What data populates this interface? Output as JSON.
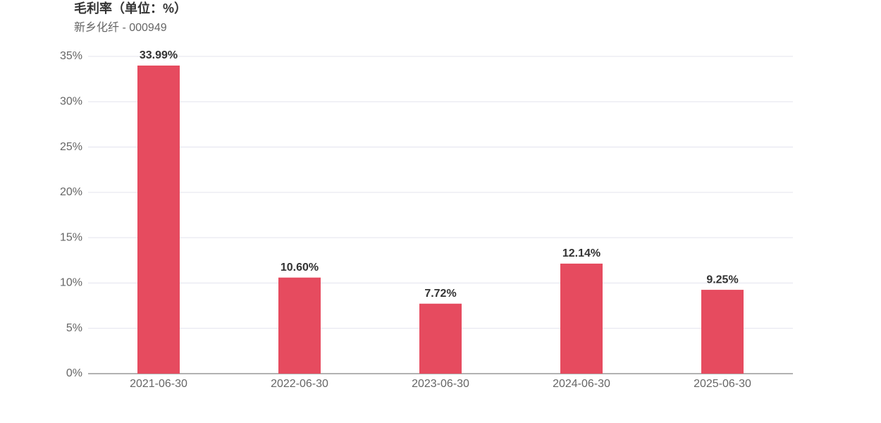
{
  "chart_data": {
    "type": "bar",
    "title": "毛利率（单位：%）",
    "subtitle": "新乡化纤 - 000949",
    "categories": [
      "2021-06-30",
      "2022-06-30",
      "2023-06-30",
      "2024-06-30",
      "2025-06-30"
    ],
    "values": [
      33.99,
      10.6,
      7.72,
      12.14,
      9.25
    ],
    "value_labels": [
      "33.99%",
      "10.60%",
      "7.72%",
      "12.14%",
      "9.25%"
    ],
    "color": "#e64b5f",
    "ylim": [
      0,
      35
    ],
    "yticks": [
      {
        "value": 0,
        "label": "0%"
      },
      {
        "value": 5,
        "label": "5%"
      },
      {
        "value": 10,
        "label": "10%"
      },
      {
        "value": 15,
        "label": "15%"
      },
      {
        "value": 20,
        "label": "20%"
      },
      {
        "value": 25,
        "label": "25%"
      },
      {
        "value": 30,
        "label": "30%"
      },
      {
        "value": 35,
        "label": "35%"
      }
    ],
    "grid": true
  }
}
